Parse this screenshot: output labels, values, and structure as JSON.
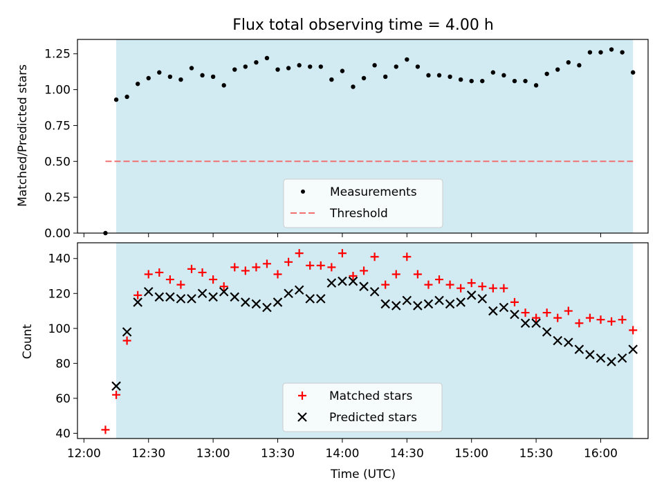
{
  "title": "Flux total observing time = 4.00 h",
  "chart_data": [
    {
      "type": "scatter",
      "ylabel": "Matched/Predicted stars",
      "xlabel": "",
      "ylim": [
        0.0,
        1.35
      ],
      "yticks": [
        "0.00",
        "0.25",
        "0.50",
        "0.75",
        "1.00",
        "1.25"
      ],
      "legend_position": "bottom-center",
      "shaded_interval": [
        "12:15",
        "16:15"
      ],
      "series": [
        {
          "name": "Measurements",
          "marker": "dot",
          "color": "#000000",
          "x": [
            "12:10",
            "12:15",
            "12:20",
            "12:25",
            "12:30",
            "12:35",
            "12:40",
            "12:45",
            "12:50",
            "12:55",
            "13:00",
            "13:05",
            "13:10",
            "13:15",
            "13:20",
            "13:25",
            "13:30",
            "13:35",
            "13:40",
            "13:45",
            "13:50",
            "13:55",
            "14:00",
            "14:05",
            "14:10",
            "14:15",
            "14:20",
            "14:25",
            "14:30",
            "14:35",
            "14:40",
            "14:45",
            "14:50",
            "14:55",
            "15:00",
            "15:05",
            "15:10",
            "15:15",
            "15:20",
            "15:25",
            "15:30",
            "15:35",
            "15:40",
            "15:45",
            "15:50",
            "15:55",
            "16:00",
            "16:05",
            "16:10",
            "16:15"
          ],
          "y": [
            0.0,
            0.93,
            0.95,
            1.04,
            1.08,
            1.12,
            1.09,
            1.07,
            1.15,
            1.1,
            1.09,
            1.03,
            1.14,
            1.16,
            1.19,
            1.22,
            1.14,
            1.15,
            1.17,
            1.16,
            1.16,
            1.07,
            1.13,
            1.02,
            1.08,
            1.17,
            1.09,
            1.16,
            1.21,
            1.16,
            1.1,
            1.1,
            1.09,
            1.07,
            1.06,
            1.06,
            1.12,
            1.1,
            1.06,
            1.06,
            1.03,
            1.11,
            1.14,
            1.19,
            1.17,
            1.26,
            1.26,
            1.28,
            1.26,
            1.12
          ]
        },
        {
          "name": "Threshold",
          "marker": "dashed-line",
          "color": "#f07070",
          "x": [
            "12:10",
            "16:15"
          ],
          "y": [
            0.5,
            0.5
          ]
        }
      ]
    },
    {
      "type": "scatter",
      "ylabel": "Count",
      "xlabel": "Time (UTC)",
      "ylim": [
        37,
        149
      ],
      "yticks": [
        "40",
        "60",
        "80",
        "100",
        "120",
        "140"
      ],
      "xticks": [
        "12:00",
        "12:30",
        "13:00",
        "13:30",
        "14:00",
        "14:30",
        "15:00",
        "15:30",
        "16:00"
      ],
      "legend_position": "bottom-center",
      "shaded_interval": [
        "12:15",
        "16:15"
      ],
      "series": [
        {
          "name": "Matched stars",
          "marker": "plus",
          "color": "#ff0000",
          "x": [
            "12:10",
            "12:15",
            "12:20",
            "12:25",
            "12:30",
            "12:35",
            "12:40",
            "12:45",
            "12:50",
            "12:55",
            "13:00",
            "13:05",
            "13:10",
            "13:15",
            "13:20",
            "13:25",
            "13:30",
            "13:35",
            "13:40",
            "13:45",
            "13:50",
            "13:55",
            "14:00",
            "14:05",
            "14:10",
            "14:15",
            "14:20",
            "14:25",
            "14:30",
            "14:35",
            "14:40",
            "14:45",
            "14:50",
            "14:55",
            "15:00",
            "15:05",
            "15:10",
            "15:15",
            "15:20",
            "15:25",
            "15:30",
            "15:35",
            "15:40",
            "15:45",
            "15:50",
            "15:55",
            "16:00",
            "16:05",
            "16:10",
            "16:15"
          ],
          "y": [
            42,
            62,
            93,
            119,
            131,
            132,
            128,
            125,
            134,
            132,
            128,
            124,
            135,
            133,
            135,
            137,
            131,
            138,
            143,
            136,
            136,
            135,
            143,
            130,
            133,
            141,
            125,
            131,
            141,
            131,
            125,
            128,
            125,
            123,
            126,
            124,
            123,
            123,
            115,
            109,
            106,
            109,
            106,
            110,
            103,
            106,
            105,
            104,
            105,
            99
          ]
        },
        {
          "name": "Predicted stars",
          "marker": "x",
          "color": "#000000",
          "x": [
            "12:15",
            "12:20",
            "12:25",
            "12:30",
            "12:35",
            "12:40",
            "12:45",
            "12:50",
            "12:55",
            "13:00",
            "13:05",
            "13:10",
            "13:15",
            "13:20",
            "13:25",
            "13:30",
            "13:35",
            "13:40",
            "13:45",
            "13:50",
            "13:55",
            "14:00",
            "14:05",
            "14:10",
            "14:15",
            "14:20",
            "14:25",
            "14:30",
            "14:35",
            "14:40",
            "14:45",
            "14:50",
            "14:55",
            "15:00",
            "15:05",
            "15:10",
            "15:15",
            "15:20",
            "15:25",
            "15:30",
            "15:35",
            "15:40",
            "15:45",
            "15:50",
            "15:55",
            "16:00",
            "16:05",
            "16:10",
            "16:15"
          ],
          "y": [
            67,
            98,
            115,
            121,
            118,
            118,
            117,
            117,
            120,
            118,
            121,
            118,
            115,
            114,
            112,
            115,
            120,
            122,
            117,
            117,
            126,
            127,
            127,
            124,
            121,
            114,
            113,
            116,
            113,
            114,
            116,
            114,
            115,
            119,
            117,
            110,
            112,
            108,
            103,
            103,
            98,
            93,
            92,
            88,
            85,
            83,
            81,
            83,
            88
          ]
        }
      ]
    }
  ]
}
